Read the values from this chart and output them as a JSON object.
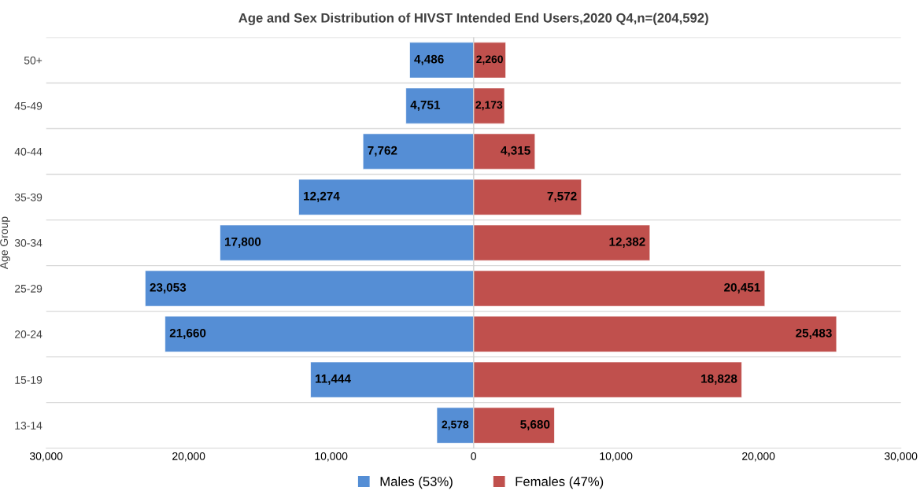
{
  "chart_data": [
    {
      "type": "bar",
      "orientation": "horizontal",
      "title": "Age and Sex Distribution of HIVST Intended End Users,2020 Q4,n=(204,592)",
      "ylabel": "Age Group",
      "categories": [
        "50+",
        "45-49",
        "40-44",
        "35-39",
        "30-34",
        "25-29",
        "20-24",
        "15-19",
        "13-14"
      ],
      "series": [
        {
          "name": "Males (53%)",
          "color": "#558ed5",
          "values": [
            4486,
            4751,
            7762,
            12274,
            17800,
            23053,
            21660,
            11444,
            2578
          ],
          "value_labels": [
            "4,486",
            "4,751",
            "7,762",
            "12,274",
            "17,800",
            "23,053",
            "21,660",
            "11,444",
            "2,578"
          ]
        }
      ],
      "xlim": [
        30000,
        0
      ],
      "xticks": [
        {
          "value": 30000,
          "label": "30,000"
        },
        {
          "value": 20000,
          "label": "20,000"
        },
        {
          "value": 10000,
          "label": "10,000"
        },
        0
      ],
      "grid": "y",
      "legend": "bottom right"
    },
    {
      "type": "bar",
      "orientation": "horizontal",
      "categories": [
        null,
        null,
        null,
        null,
        null,
        null,
        null,
        null,
        null
      ],
      "series": [
        {
          "name": "Females (47%)",
          "color": "#c0504d",
          "values": [
            2260,
            2173,
            4315,
            7572,
            12382,
            20451,
            25483,
            18828,
            5680
          ],
          "value_labels": [
            "2,260",
            "2,173",
            "4,315",
            "7,572",
            "12,382",
            "20,451",
            "25,483",
            "18,828",
            "5,680"
          ]
        }
      ],
      "xlim": [
        0,
        30000
      ],
      "xticks": [
        {
          "value": 0,
          "label": null
        },
        {
          "value": 10000,
          "label": "10,000"
        },
        {
          "value": 20000,
          "label": "20,000"
        },
        {
          "value": 30000,
          "label": "30,000"
        }
      ],
      "tick_labels": "x",
      "grid": "y",
      "legend": "bottom left"
    }
  ]
}
